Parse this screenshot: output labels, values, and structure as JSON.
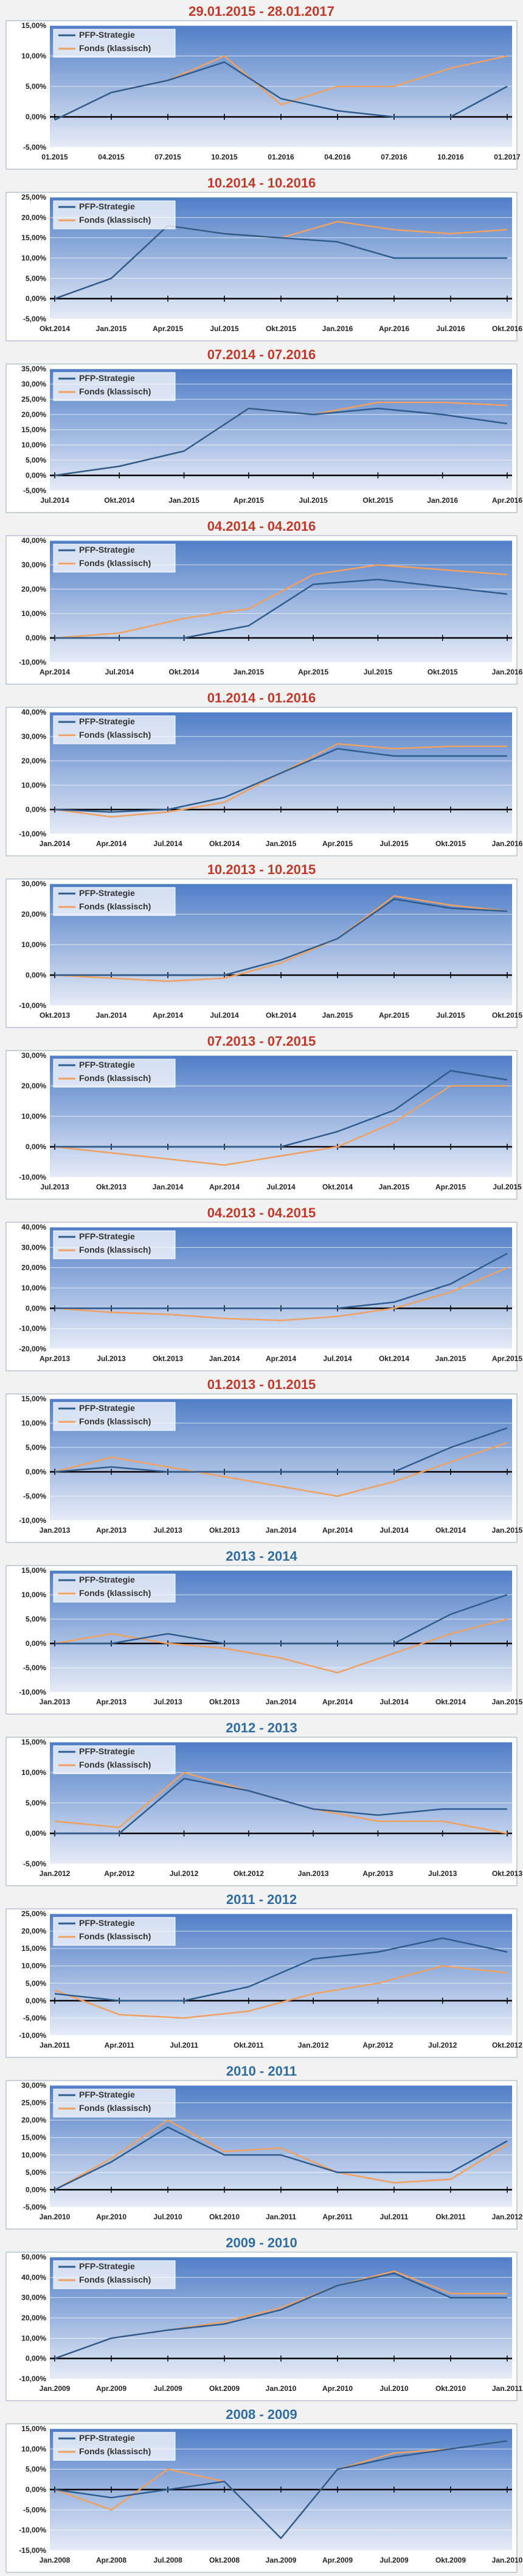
{
  "legend": {
    "strategy": "PFP-Strategie",
    "fund": "Fonds (klassisch)"
  },
  "colors": {
    "strategy": "#2f5c8e",
    "fund": "#f0a060",
    "title_red": "#c0392b",
    "title_blue": "#2e6da4",
    "plot_top": "#4f7ec7",
    "plot_bottom": "#e6ecf7"
  },
  "chart_data": [
    {
      "type": "line",
      "title": "29.01.2015 - 28.01.2017",
      "title_color": "red",
      "x": [
        "01.2015",
        "04.2015",
        "07.2015",
        "10.2015",
        "01.2016",
        "04.2016",
        "07.2016",
        "10.2016",
        "01.2017"
      ],
      "y_ticks": [
        "15,00%",
        "10,00%",
        "5,00%",
        "0,00%",
        "-5,00%"
      ],
      "ylim": [
        -5,
        15
      ],
      "series": [
        {
          "name": "PFP-Strategie",
          "values": [
            -0.5,
            4,
            6,
            9,
            3,
            1,
            0,
            0,
            5
          ]
        },
        {
          "name": "Fonds (klassisch)",
          "values": [
            -0.5,
            4,
            6,
            10,
            2,
            5,
            5,
            8,
            10
          ]
        }
      ]
    },
    {
      "type": "line",
      "title": "10.2014 - 10.2016",
      "title_color": "red",
      "x": [
        "Okt.2014",
        "Jan.2015",
        "Apr.2015",
        "Jul.2015",
        "Okt.2015",
        "Jan.2016",
        "Apr.2016",
        "Jul.2016",
        "Okt.2016"
      ],
      "y_ticks": [
        "25,00%",
        "20,00%",
        "15,00%",
        "10,00%",
        "5,00%",
        "0,00%",
        "-5,00%"
      ],
      "ylim": [
        -5,
        25
      ],
      "series": [
        {
          "name": "PFP-Strategie",
          "values": [
            0,
            5,
            18,
            16,
            15,
            14,
            10,
            10,
            10
          ]
        },
        {
          "name": "Fonds (klassisch)",
          "values": [
            0,
            5,
            18,
            16,
            15,
            19,
            17,
            16,
            17
          ]
        }
      ]
    },
    {
      "type": "line",
      "title": "07.2014 - 07.2016",
      "title_color": "red",
      "x": [
        "Jul.2014",
        "Okt.2014",
        "Jan.2015",
        "Apr.2015",
        "Jul.2015",
        "Okt.2015",
        "Jan.2016",
        "Apr.2016"
      ],
      "y_ticks": [
        "35,00%",
        "30,00%",
        "25,00%",
        "20,00%",
        "15,00%",
        "10,00%",
        "5,00%",
        "0,00%",
        "-5,00%"
      ],
      "ylim": [
        -5,
        35
      ],
      "series": [
        {
          "name": "PFP-Strategie",
          "values": [
            0,
            3,
            8,
            22,
            20,
            22,
            20,
            17
          ]
        },
        {
          "name": "Fonds (klassisch)",
          "values": [
            0,
            3,
            8,
            22,
            20,
            24,
            24,
            23
          ]
        }
      ]
    },
    {
      "type": "line",
      "title": "04.2014 - 04.2016",
      "title_color": "red",
      "x": [
        "Apr.2014",
        "Jul.2014",
        "Okt.2014",
        "Jan.2015",
        "Apr.2015",
        "Jul.2015",
        "Okt.2015",
        "Jan.2016"
      ],
      "y_ticks": [
        "40,00%",
        "30,00%",
        "20,00%",
        "10,00%",
        "0,00%",
        "-10,00%"
      ],
      "ylim": [
        -10,
        40
      ],
      "series": [
        {
          "name": "PFP-Strategie",
          "values": [
            0,
            0,
            0,
            5,
            22,
            24,
            21,
            18
          ]
        },
        {
          "name": "Fonds (klassisch)",
          "values": [
            0,
            2,
            8,
            12,
            26,
            30,
            28,
            26
          ]
        }
      ]
    },
    {
      "type": "line",
      "title": "01.2014 - 01.2016",
      "title_color": "red",
      "x": [
        "Jan.2014",
        "Apr.2014",
        "Jul.2014",
        "Okt.2014",
        "Jan.2015",
        "Apr.2015",
        "Jul.2015",
        "Okt.2015",
        "Jan.2016"
      ],
      "y_ticks": [
        "40,00%",
        "30,00%",
        "20,00%",
        "10,00%",
        "0,00%",
        "-10,00%"
      ],
      "ylim": [
        -10,
        40
      ],
      "series": [
        {
          "name": "PFP-Strategie",
          "values": [
            0,
            -1,
            0,
            5,
            15,
            25,
            22,
            22,
            22
          ]
        },
        {
          "name": "Fonds (klassisch)",
          "values": [
            0,
            -3,
            -1,
            3,
            15,
            27,
            25,
            26,
            26
          ]
        }
      ]
    },
    {
      "type": "line",
      "title": "10.2013 - 10.2015",
      "title_color": "red",
      "x": [
        "Okt.2013",
        "Jan.2014",
        "Apr.2014",
        "Jul.2014",
        "Okt.2014",
        "Jan.2015",
        "Apr.2015",
        "Jul.2015",
        "Okt.2015"
      ],
      "y_ticks": [
        "30,00%",
        "20,00%",
        "10,00%",
        "0,00%",
        "-10,00%"
      ],
      "ylim": [
        -10,
        30
      ],
      "series": [
        {
          "name": "PFP-Strategie",
          "values": [
            0,
            0,
            0,
            0,
            5,
            12,
            25,
            22,
            21
          ]
        },
        {
          "name": "Fonds (klassisch)",
          "values": [
            0,
            -1,
            -2,
            -1,
            4,
            12,
            26,
            23,
            21
          ]
        }
      ]
    },
    {
      "type": "line",
      "title": "07.2013 - 07.2015",
      "title_color": "red",
      "x": [
        "Jul.2013",
        "Okt.2013",
        "Jan.2014",
        "Apr.2014",
        "Jul.2014",
        "Okt.2014",
        "Jan.2015",
        "Apr.2015",
        "Jul.2015"
      ],
      "y_ticks": [
        "30,00%",
        "20,00%",
        "10,00%",
        "0,00%",
        "-10,00%"
      ],
      "ylim": [
        -10,
        30
      ],
      "series": [
        {
          "name": "PFP-Strategie",
          "values": [
            0,
            0,
            0,
            0,
            0,
            5,
            12,
            25,
            22
          ]
        },
        {
          "name": "Fonds (klassisch)",
          "values": [
            0,
            -2,
            -4,
            -6,
            -3,
            0,
            8,
            20,
            20
          ]
        }
      ]
    },
    {
      "type": "line",
      "title": "04.2013 - 04.2015",
      "title_color": "red",
      "x": [
        "Apr.2013",
        "Jul.2013",
        "Okt.2013",
        "Jan.2014",
        "Apr.2014",
        "Jul.2014",
        "Okt.2014",
        "Jan.2015",
        "Apr.2015"
      ],
      "y_ticks": [
        "40,00%",
        "30,00%",
        "20,00%",
        "10,00%",
        "0,00%",
        "-10,00%",
        "-20,00%"
      ],
      "ylim": [
        -20,
        40
      ],
      "series": [
        {
          "name": "PFP-Strategie",
          "values": [
            0,
            0,
            0,
            0,
            0,
            0,
            3,
            12,
            27
          ]
        },
        {
          "name": "Fonds (klassisch)",
          "values": [
            0,
            -2,
            -3,
            -5,
            -6,
            -4,
            0,
            8,
            20
          ]
        }
      ]
    },
    {
      "type": "line",
      "title": "01.2013 - 01.2015",
      "title_color": "red",
      "x": [
        "Jan.2013",
        "Apr.2013",
        "Jul.2013",
        "Okt.2013",
        "Jan.2014",
        "Apr.2014",
        "Jul.2014",
        "Okt.2014",
        "Jan.2015"
      ],
      "y_ticks": [
        "15,00%",
        "10,00%",
        "5,00%",
        "0,00%",
        "-5,00%",
        "-10,00%"
      ],
      "ylim": [
        -10,
        15
      ],
      "series": [
        {
          "name": "PFP-Strategie",
          "values": [
            0,
            1,
            0,
            0,
            0,
            0,
            0,
            5,
            9
          ]
        },
        {
          "name": "Fonds (klassisch)",
          "values": [
            0,
            3,
            1,
            -1,
            -3,
            -5,
            -2,
            2,
            6
          ]
        }
      ]
    },
    {
      "type": "line",
      "title": "2013 - 2014",
      "title_color": "blue",
      "x": [
        "Jan.2013",
        "Apr.2013",
        "Jul.2013",
        "Okt.2013",
        "Jan.2014",
        "Apr.2014",
        "Jul.2014",
        "Okt.2014",
        "Jan.2015"
      ],
      "y_ticks": [
        "15,00%",
        "10,00%",
        "5,00%",
        "0,00%",
        "-5,00%",
        "-10,00%"
      ],
      "ylim": [
        -10,
        15
      ],
      "series": [
        {
          "name": "PFP-Strategie",
          "values": [
            0,
            0,
            2,
            0,
            0,
            0,
            0,
            6,
            10
          ]
        },
        {
          "name": "Fonds (klassisch)",
          "values": [
            0,
            2,
            0,
            -1,
            -3,
            -6,
            -2,
            2,
            5
          ]
        }
      ]
    },
    {
      "type": "line",
      "title": "2012 - 2013",
      "title_color": "blue",
      "x": [
        "Jan.2012",
        "Apr.2012",
        "Jul.2012",
        "Okt.2012",
        "Jan.2013",
        "Apr.2013",
        "Jul.2013",
        "Okt.2013"
      ],
      "y_ticks": [
        "15,00%",
        "10,00%",
        "5,00%",
        "0,00%",
        "-5,00%"
      ],
      "ylim": [
        -5,
        15
      ],
      "series": [
        {
          "name": "PFP-Strategie",
          "values": [
            0,
            0,
            9,
            7,
            4,
            3,
            4,
            4
          ]
        },
        {
          "name": "Fonds (klassisch)",
          "values": [
            2,
            1,
            10,
            7,
            4,
            2,
            2,
            0
          ]
        }
      ]
    },
    {
      "type": "line",
      "title": "2011 - 2012",
      "title_color": "blue",
      "x": [
        "Jan.2011",
        "Apr.2011",
        "Jul.2011",
        "Okt.2011",
        "Jan.2012",
        "Apr.2012",
        "Jul.2012",
        "Okt.2012"
      ],
      "y_ticks": [
        "25,00%",
        "20,00%",
        "15,00%",
        "10,00%",
        "5,00%",
        "0,00%",
        "-5,00%",
        "-10,00%"
      ],
      "ylim": [
        -10,
        25
      ],
      "series": [
        {
          "name": "PFP-Strategie",
          "values": [
            2,
            0,
            0,
            4,
            12,
            14,
            18,
            14
          ]
        },
        {
          "name": "Fonds (klassisch)",
          "values": [
            3,
            -4,
            -5,
            -3,
            2,
            5,
            10,
            8
          ]
        }
      ]
    },
    {
      "type": "line",
      "title": "2010 - 2011",
      "title_color": "blue",
      "x": [
        "Jan.2010",
        "Apr.2010",
        "Jul.2010",
        "Okt.2010",
        "Jan.2011",
        "Apr.2011",
        "Jul.2011",
        "Okt.2011",
        "Jan.2012"
      ],
      "y_ticks": [
        "30,00%",
        "25,00%",
        "20,00%",
        "15,00%",
        "10,00%",
        "5,00%",
        "0,00%",
        "-5,00%"
      ],
      "ylim": [
        -5,
        30
      ],
      "series": [
        {
          "name": "PFP-Strategie",
          "values": [
            0,
            8,
            18,
            10,
            10,
            5,
            5,
            5,
            14
          ]
        },
        {
          "name": "Fonds (klassisch)",
          "values": [
            0,
            9,
            20,
            11,
            12,
            5,
            2,
            3,
            13
          ]
        }
      ]
    },
    {
      "type": "line",
      "title": "2009 - 2010",
      "title_color": "blue",
      "x": [
        "Jan.2009",
        "Apr.2009",
        "Jul.2009",
        "Okt.2009",
        "Jan.2010",
        "Apr.2010",
        "Jul.2010",
        "Okt.2010",
        "Jan.2011"
      ],
      "y_ticks": [
        "50,00%",
        "40,00%",
        "30,00%",
        "20,00%",
        "10,00%",
        "0,00%",
        "-10,00%"
      ],
      "ylim": [
        -10,
        50
      ],
      "series": [
        {
          "name": "PFP-Strategie",
          "values": [
            0,
            10,
            14,
            17,
            24,
            36,
            42,
            30,
            30
          ]
        },
        {
          "name": "Fonds (klassisch)",
          "values": [
            0,
            10,
            14,
            18,
            25,
            36,
            43,
            32,
            32
          ]
        }
      ]
    },
    {
      "type": "line",
      "title": "2008 - 2009",
      "title_color": "blue",
      "x": [
        "Jan.2008",
        "Apr.2008",
        "Jul.2008",
        "Okt.2008",
        "Jan.2009",
        "Apr.2009",
        "Jul.2009",
        "Okt.2009",
        "Jan.2010"
      ],
      "y_ticks": [
        "15,00%",
        "10,00%",
        "5,00%",
        "0,00%",
        "-5,00%",
        "-10,00%",
        "-15,00%"
      ],
      "ylim": [
        -15,
        15
      ],
      "series": [
        {
          "name": "PFP-Strategie",
          "values": [
            0,
            -2,
            0,
            2,
            -12,
            5,
            8,
            10,
            12
          ]
        },
        {
          "name": "Fonds (klassisch)",
          "values": [
            0,
            -5,
            5,
            2,
            -12,
            5,
            9,
            10,
            12
          ]
        }
      ]
    }
  ]
}
